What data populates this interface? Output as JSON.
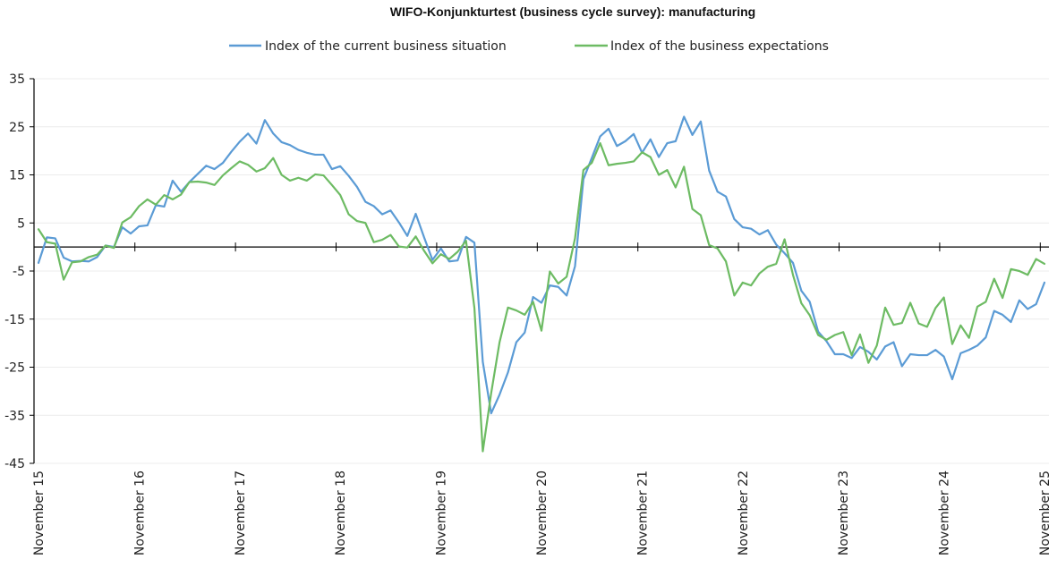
{
  "chart_data": {
    "type": "line",
    "title": "WIFO-Konjunkturtest (business cycle survey): manufacturing",
    "xlabel": "",
    "ylabel": "",
    "ylim": [
      -45,
      35
    ],
    "yticks": [
      35,
      25,
      15,
      5,
      -5,
      -15,
      -25,
      -35,
      -45
    ],
    "ytick_labels": [
      "35",
      "25",
      "15",
      "5",
      "-5",
      "-15",
      "-25",
      "-35",
      "-45"
    ],
    "x_start": "November 2015",
    "x_end": "November 2025",
    "frequency": "monthly",
    "xtick_labels": [
      "November 15",
      "November 16",
      "November 17",
      "November 18",
      "November 19",
      "November 20",
      "November 21",
      "November 22",
      "November 23",
      "November 24",
      "November 25"
    ],
    "grid": true,
    "legend_position": "top-center",
    "series": [
      {
        "name": "Index of the current business situation",
        "color": "#5B9BD5",
        "values": [
          -3.3,
          2.0,
          1.8,
          -2.2,
          -3.0,
          -2.9,
          -3.0,
          -2.1,
          0.3,
          0.0,
          4.1,
          2.8,
          4.3,
          4.5,
          8.7,
          8.4,
          13.8,
          11.5,
          13.5,
          15.2,
          16.9,
          16.2,
          17.5,
          19.8,
          21.9,
          23.6,
          21.5,
          26.4,
          23.6,
          21.8,
          21.2,
          20.2,
          19.6,
          19.2,
          19.2,
          16.2,
          16.8,
          14.8,
          12.5,
          9.4,
          8.5,
          6.8,
          7.6,
          5.1,
          2.3,
          6.9,
          2.0,
          -2.7,
          -0.3,
          -3.0,
          -2.8,
          2.1,
          0.9,
          -23.9,
          -34.6,
          -30.7,
          -26.1,
          -19.8,
          -17.8,
          -10.4,
          -11.6,
          -8.0,
          -8.3,
          -10.1,
          -4.0,
          14.1,
          18.5,
          23.0,
          24.6,
          21.0,
          22.0,
          23.5,
          19.6,
          22.4,
          18.7,
          21.6,
          22.0,
          27.1,
          23.3,
          26.1,
          15.9,
          11.5,
          10.5,
          5.8,
          4.1,
          3.8,
          2.6,
          3.5,
          0.5,
          -1.3,
          -3.3,
          -9.1,
          -11.4,
          -17.6,
          -19.6,
          -22.3,
          -22.3,
          -23.1,
          -20.8,
          -21.8,
          -23.4,
          -20.7,
          -19.8,
          -24.8,
          -22.3,
          -22.5,
          -22.5,
          -21.4,
          -22.8,
          -27.5,
          -22.1,
          -21.4,
          -20.5,
          -18.8,
          -13.3,
          -14.1,
          -15.6,
          -11.1,
          -12.9,
          -11.9,
          -7.4
        ]
      },
      {
        "name": "Index of the business expectations",
        "color": "#6DBB63",
        "values": [
          3.7,
          1.0,
          0.7,
          -6.8,
          -3.2,
          -3.0,
          -2.1,
          -1.6,
          0.3,
          -0.2,
          5.1,
          6.2,
          8.5,
          9.9,
          8.8,
          10.8,
          9.9,
          10.9,
          13.5,
          13.6,
          13.4,
          12.9,
          14.9,
          16.4,
          17.8,
          17.1,
          15.7,
          16.4,
          18.5,
          15.0,
          13.8,
          14.4,
          13.8,
          15.1,
          14.9,
          12.9,
          10.8,
          6.8,
          5.4,
          5.0,
          1.0,
          1.5,
          2.5,
          0.1,
          -0.1,
          2.2,
          -0.8,
          -3.4,
          -1.5,
          -2.5,
          -1.0,
          1.3,
          -12.7,
          -42.5,
          -30.4,
          -19.8,
          -12.6,
          -13.2,
          -14.1,
          -11.4,
          -17.4,
          -5.1,
          -7.6,
          -6.2,
          1.8,
          16.0,
          17.5,
          21.6,
          17.0,
          17.3,
          17.5,
          17.8,
          19.7,
          18.7,
          15.0,
          16.0,
          12.4,
          16.7,
          7.9,
          6.6,
          0.4,
          -0.3,
          -3.0,
          -10.1,
          -7.4,
          -8.0,
          -5.5,
          -4.1,
          -3.5,
          1.6,
          -5.8,
          -11.7,
          -14.2,
          -18.3,
          -19.3,
          -18.3,
          -17.7,
          -22.5,
          -18.2,
          -24.1,
          -20.5,
          -12.6,
          -16.2,
          -15.8,
          -11.6,
          -15.9,
          -16.6,
          -12.7,
          -10.5,
          -20.2,
          -16.3,
          -18.9,
          -12.4,
          -11.4,
          -6.6,
          -10.6,
          -4.6,
          -5.0,
          -5.8,
          -2.5,
          -3.5
        ]
      }
    ]
  }
}
